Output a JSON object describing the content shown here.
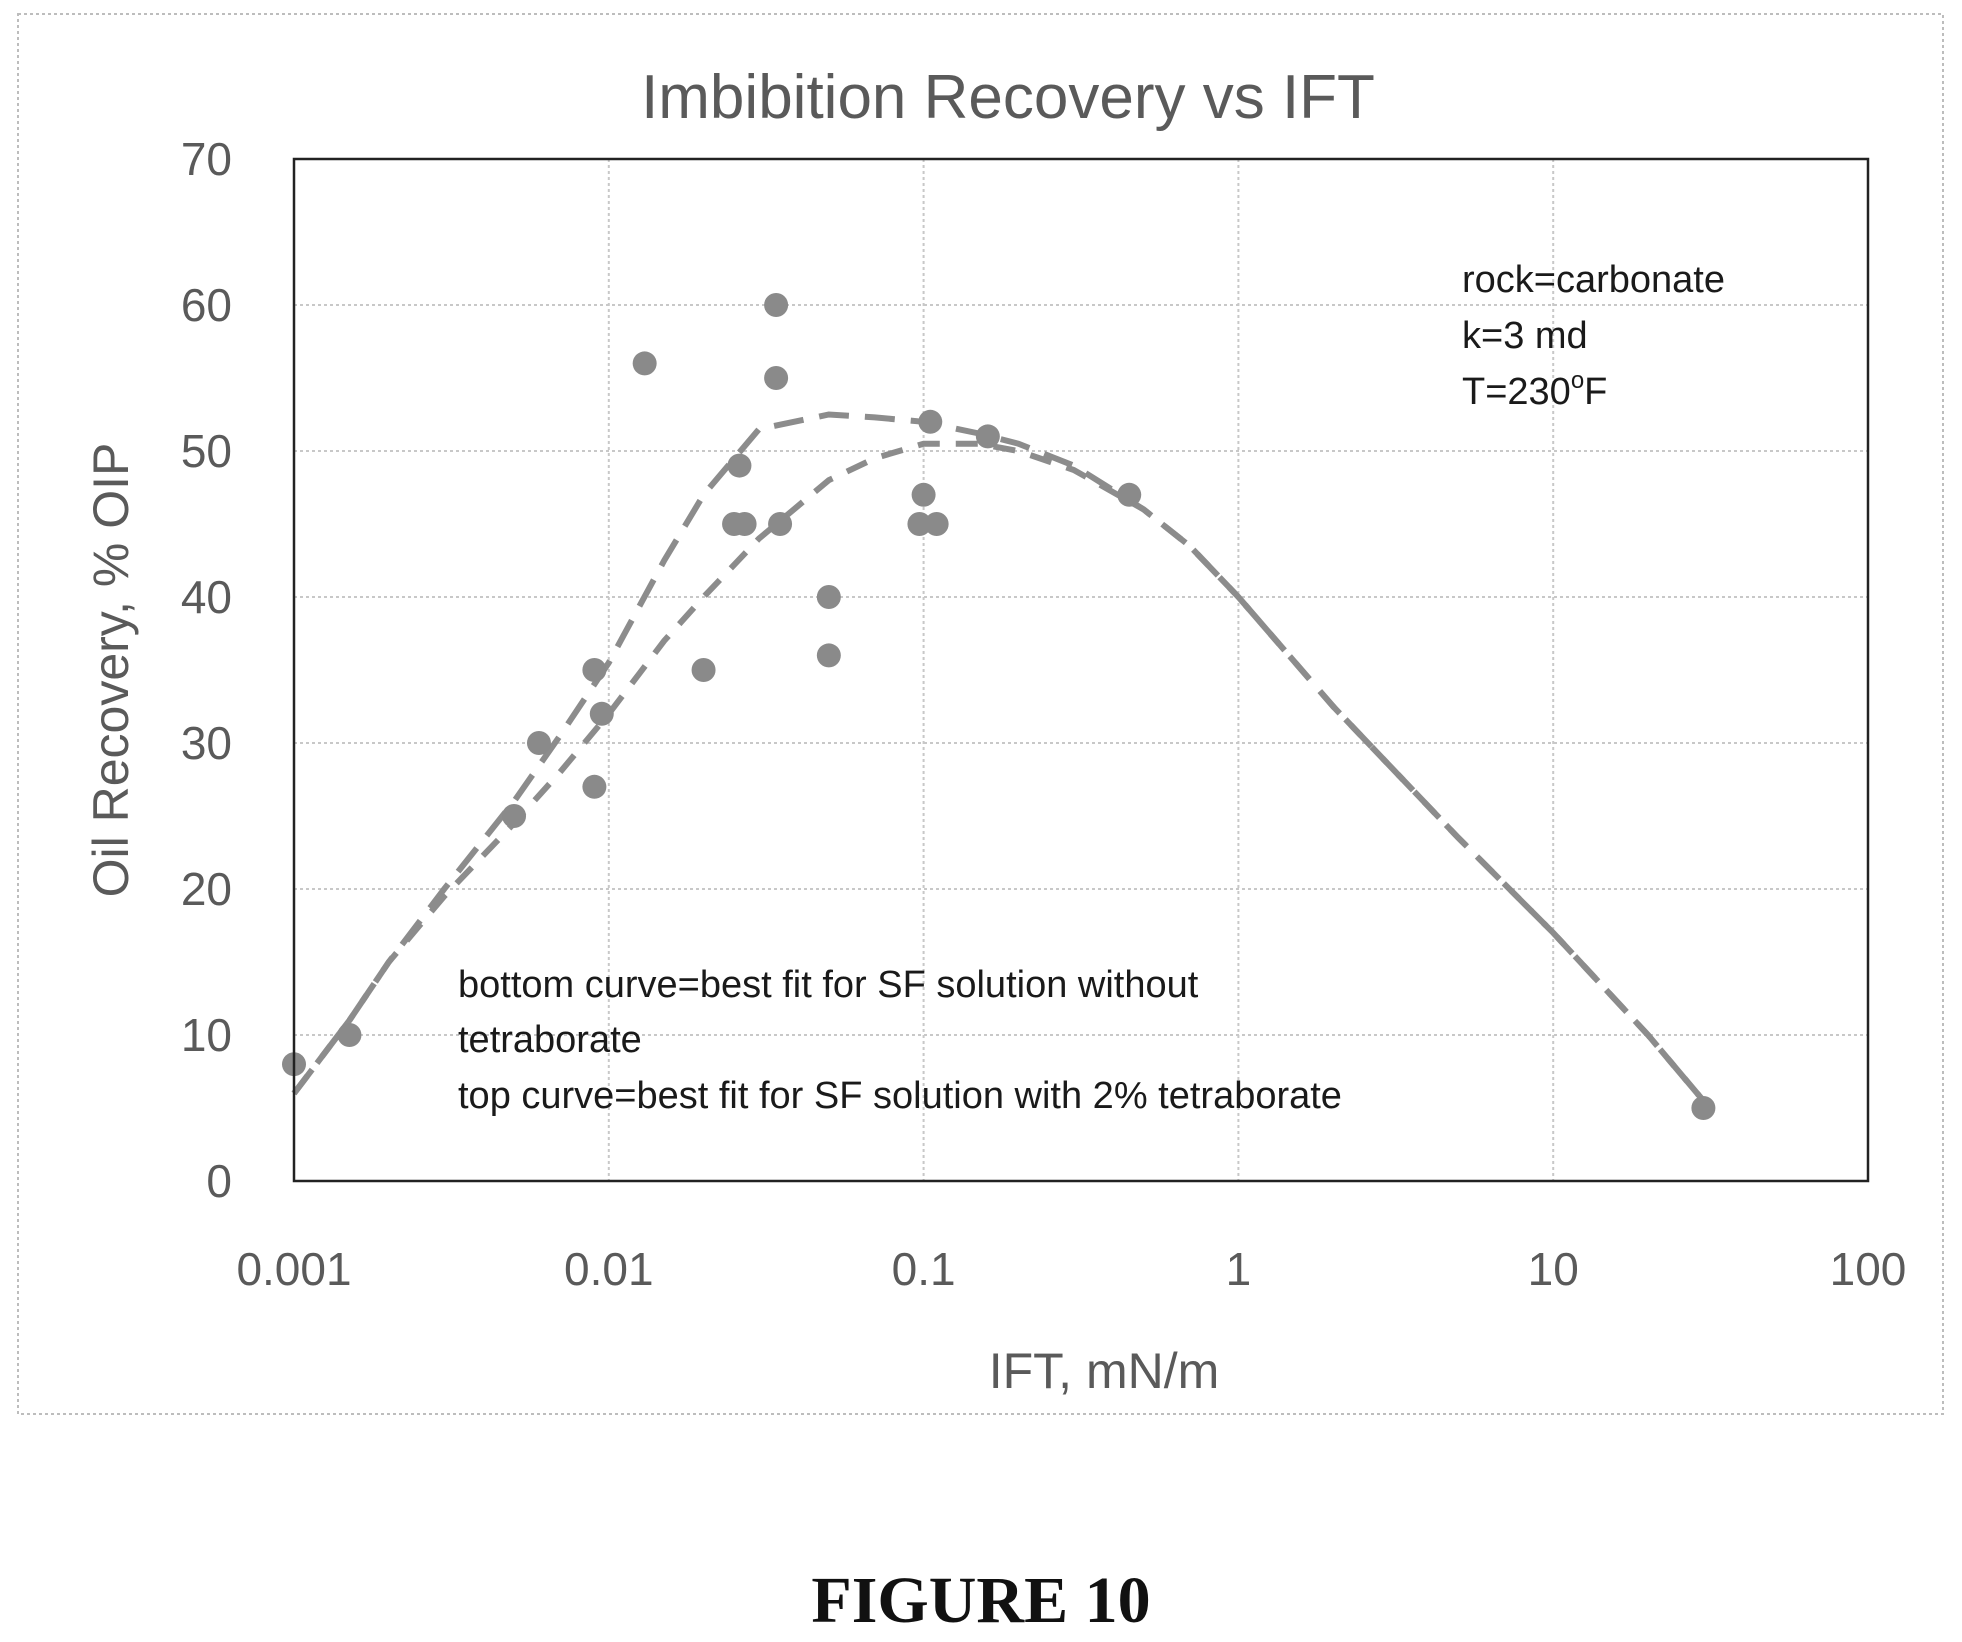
{
  "chart_data": {
    "type": "scatter",
    "title": "Imbibition Recovery vs IFT",
    "xlabel": "IFT, mN/m",
    "ylabel": "Oil Recovery, % OIP",
    "xscale": "log",
    "xlim": [
      0.001,
      100
    ],
    "ylim": [
      0,
      70
    ],
    "xticks": [
      "0.001",
      "0.01",
      "0.1",
      "1",
      "10",
      "100"
    ],
    "yticks": [
      "0",
      "10",
      "20",
      "30",
      "40",
      "50",
      "60",
      "70"
    ],
    "grid": true,
    "points": [
      {
        "x": 0.001,
        "y": 8
      },
      {
        "x": 0.0015,
        "y": 10
      },
      {
        "x": 0.005,
        "y": 25
      },
      {
        "x": 0.006,
        "y": 30
      },
      {
        "x": 0.009,
        "y": 27
      },
      {
        "x": 0.009,
        "y": 35
      },
      {
        "x": 0.0095,
        "y": 32
      },
      {
        "x": 0.013,
        "y": 56
      },
      {
        "x": 0.02,
        "y": 35
      },
      {
        "x": 0.025,
        "y": 45
      },
      {
        "x": 0.026,
        "y": 49
      },
      {
        "x": 0.027,
        "y": 45
      },
      {
        "x": 0.034,
        "y": 60
      },
      {
        "x": 0.034,
        "y": 55
      },
      {
        "x": 0.035,
        "y": 45
      },
      {
        "x": 0.05,
        "y": 40
      },
      {
        "x": 0.05,
        "y": 36
      },
      {
        "x": 0.097,
        "y": 45
      },
      {
        "x": 0.1,
        "y": 47
      },
      {
        "x": 0.105,
        "y": 52
      },
      {
        "x": 0.11,
        "y": 45
      },
      {
        "x": 0.16,
        "y": 51
      },
      {
        "x": 0.45,
        "y": 47
      },
      {
        "x": 30,
        "y": 5
      }
    ],
    "curves": [
      {
        "x": [
          0.001,
          0.0015,
          0.002,
          0.003,
          0.005,
          0.007,
          0.01,
          0.015,
          0.02,
          0.03,
          0.05,
          0.07,
          0.1,
          0.15,
          0.2,
          0.3,
          0.5,
          0.7,
          1,
          2,
          5,
          10,
          20,
          30
        ],
        "y": [
          6,
          11,
          15,
          20,
          26,
          30.5,
          35.5,
          42.5,
          47,
          51.5,
          52.5,
          52.3,
          52,
          51.2,
          50.5,
          49,
          46,
          43.5,
          40,
          32.5,
          23.5,
          17,
          10,
          5.5
        ]
      },
      {
        "x": [
          0.001,
          0.0015,
          0.002,
          0.003,
          0.005,
          0.007,
          0.01,
          0.015,
          0.02,
          0.03,
          0.05,
          0.07,
          0.1,
          0.15,
          0.2,
          0.3,
          0.5,
          0.7,
          1,
          2,
          5,
          10,
          20,
          30
        ],
        "y": [
          6,
          11,
          15,
          19.5,
          24.5,
          28,
          32,
          37,
          40,
          44,
          48,
          49.5,
          50.5,
          50.5,
          50,
          48.7,
          46,
          43.5,
          40,
          32.5,
          23.5,
          17,
          10,
          5.5
        ]
      }
    ],
    "annotation_top": [
      "rock=carbonate",
      "k=3 md",
      "T=230",
      "o",
      "F"
    ],
    "annotation_bottom": [
      "bottom curve=best fit for SF solution without",
      "tetraborate",
      "top curve=best fit for SF solution with 2% tetraborate"
    ]
  },
  "figure_label": "FIGURE 10",
  "colors": {
    "point": "#8a8a8a",
    "curve": "#8c8c8c",
    "frame": "#222222",
    "grid": "#c8c8c8",
    "border": "#bdbdbd"
  }
}
